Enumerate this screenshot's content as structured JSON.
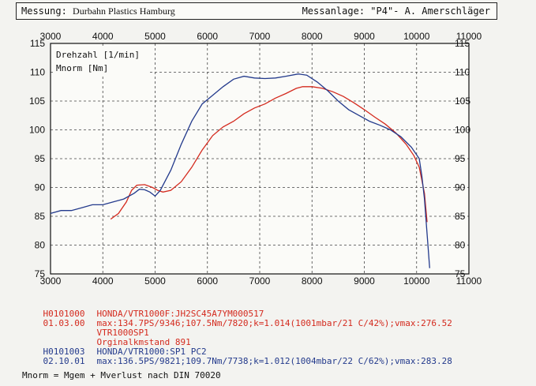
{
  "header": {
    "messung_label": "Messung:",
    "messung_value": "Durbahn Plastics Hamburg",
    "messanlage": "Messanlage: \"P4\"- A. Amerschläger"
  },
  "chart_data": {
    "type": "line",
    "xlim": [
      3000,
      11000
    ],
    "ylim": [
      75,
      115
    ],
    "x_ticks": [
      3000,
      4000,
      5000,
      6000,
      7000,
      8000,
      9000,
      10000,
      11000
    ],
    "y_ticks": [
      75,
      80,
      85,
      90,
      95,
      100,
      105,
      110,
      115
    ],
    "grid": true,
    "annotations": [
      "Drehzahl [1/min]",
      "Mnorm [Nm]"
    ],
    "series": [
      {
        "color": "#d42a1e",
        "x": [
          4150,
          4300,
          4450,
          4550,
          4650,
          4800,
          4950,
          5050,
          5150,
          5300,
          5500,
          5700,
          5900,
          6100,
          6300,
          6500,
          6700,
          6900,
          7100,
          7300,
          7500,
          7700,
          7820,
          8000,
          8200,
          8400,
          8600,
          8800,
          9000,
          9200,
          9400,
          9600,
          9800,
          9950,
          10050,
          10150,
          10200
        ],
        "y": [
          84.5,
          85.5,
          87.5,
          89.5,
          90.4,
          90.5,
          90.0,
          89.5,
          89.2,
          89.5,
          91.0,
          93.5,
          96.5,
          99.0,
          100.5,
          101.5,
          102.8,
          103.8,
          104.5,
          105.5,
          106.3,
          107.2,
          107.5,
          107.5,
          107.2,
          106.6,
          105.8,
          104.7,
          103.5,
          102.2,
          101.0,
          99.5,
          97.5,
          95.5,
          93.5,
          89.0,
          84.0
        ]
      },
      {
        "color": "#233a8c",
        "x": [
          3000,
          3200,
          3400,
          3600,
          3800,
          4000,
          4200,
          4400,
          4600,
          4700,
          4800,
          4900,
          5000,
          5100,
          5300,
          5500,
          5700,
          5900,
          6100,
          6300,
          6500,
          6700,
          6900,
          7100,
          7300,
          7500,
          7738,
          7900,
          8100,
          8300,
          8500,
          8700,
          8900,
          9100,
          9300,
          9500,
          9700,
          9900,
          10050,
          10100,
          10150,
          10200,
          10250
        ],
        "y": [
          85.5,
          86.0,
          86.0,
          86.5,
          87.0,
          87.0,
          87.5,
          88.0,
          89.0,
          89.7,
          89.6,
          89.2,
          88.5,
          89.5,
          93.0,
          97.5,
          101.5,
          104.5,
          106.0,
          107.5,
          108.8,
          109.3,
          109.0,
          108.9,
          109.0,
          109.3,
          109.7,
          109.5,
          108.3,
          106.8,
          105.0,
          103.5,
          102.5,
          101.5,
          100.8,
          100.0,
          98.8,
          97.0,
          95.0,
          92.0,
          88.0,
          82.0,
          76.0
        ]
      }
    ]
  },
  "info": {
    "lines": [
      {
        "color": "#d42a1e",
        "col1": "H0101000",
        "col2": "HONDA/VTR1000F:JH2SC45A7YM000517"
      },
      {
        "color": "#d42a1e",
        "col1": "01.03.00",
        "col2": "max:134.7PS/9346;107.5Nm/7820;k=1.014(1001mbar/21 C/42%);vmax:276.52"
      },
      {
        "color": "#d42a1e",
        "col1": "",
        "col2": "VTR1000SP1"
      },
      {
        "color": "#d42a1e",
        "col1": "",
        "col2": "Orginalkmstand 891"
      },
      {
        "color": "#233a8c",
        "col1": "H0101003",
        "col2": "HONDA/VTR1000:SP1 PC2"
      },
      {
        "color": "#233a8c",
        "col1": "02.10.01",
        "col2": "max:136.5PS/9821;109.7Nm/7738;k=1.012(1004mbar/22 C/62%);vmax:283.28"
      }
    ]
  },
  "footer": {
    "text": "Mnorm = Mgem + Mverlust nach DIN 70020"
  }
}
